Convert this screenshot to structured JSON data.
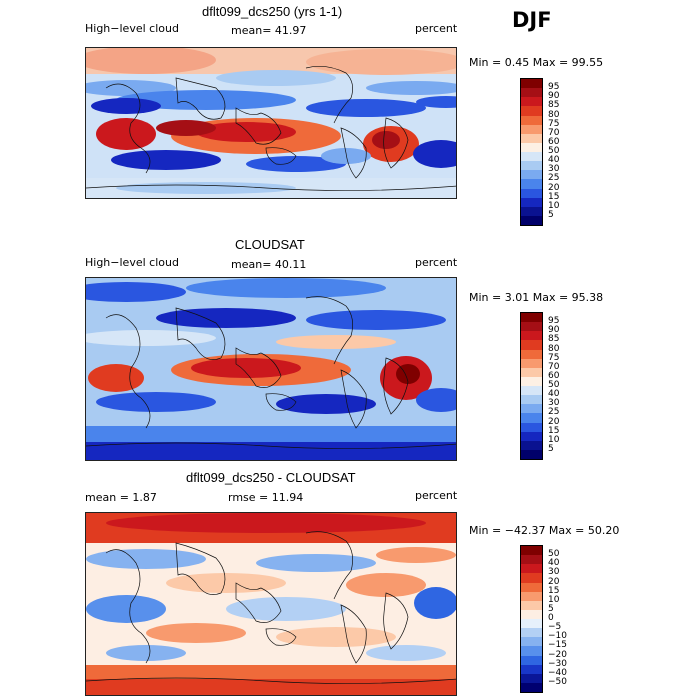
{
  "season": "DJF",
  "panels": [
    {
      "title": "dflt099_dcs250 (yrs 1-1)",
      "left_label": "High−level cloud",
      "mid_label": "mean=  41.97",
      "right_label": "percent",
      "min_max": "Min =   0.45 Max =  99.55",
      "kind": "abs",
      "colorbar_labels": [
        "95",
        "90",
        "85",
        "80",
        "75",
        "70",
        "60",
        "50",
        "40",
        "30",
        "25",
        "20",
        "15",
        "10",
        "5"
      ]
    },
    {
      "title": "CLOUDSAT",
      "left_label": "High−level cloud",
      "mid_label": "mean=  40.11",
      "right_label": "percent",
      "min_max": "Min =   3.01 Max =  95.38",
      "kind": "abs",
      "colorbar_labels": [
        "95",
        "90",
        "85",
        "80",
        "75",
        "70",
        "60",
        "50",
        "40",
        "30",
        "25",
        "20",
        "15",
        "10",
        "5"
      ]
    },
    {
      "title": "dflt099_dcs250 - CLOUDSAT",
      "left_label": "mean =   1.87",
      "mid_label": "rmse =  11.94",
      "right_label": "percent",
      "min_max": "Min = −42.37 Max =  50.20",
      "kind": "diff",
      "colorbar_labels": [
        "50",
        "40",
        "30",
        "20",
        "15",
        "10",
        "5",
        "0",
        "−5",
        "−10",
        "−15",
        "−20",
        "−30",
        "−40",
        "−50"
      ]
    }
  ],
  "colors": {
    "abs": [
      "#7f0000",
      "#a50f15",
      "#cb181d",
      "#e03b20",
      "#ef6a3a",
      "#f89a6e",
      "#fcc9a8",
      "#fdf0e4",
      "#d6e6f7",
      "#a9cbf2",
      "#7aaaf0",
      "#4a84ec",
      "#2a56e0",
      "#1527c0",
      "#0a1290",
      "#00006a"
    ],
    "diff": [
      "#7f0000",
      "#a50f15",
      "#cb181d",
      "#e03b20",
      "#ef6a3a",
      "#f89a6e",
      "#fcc9a8",
      "#fdeee3",
      "#e6f0fb",
      "#b3d0f4",
      "#86b2f0",
      "#5890ec",
      "#2f66e2",
      "#1836c8",
      "#0a1698",
      "#000070"
    ]
  }
}
